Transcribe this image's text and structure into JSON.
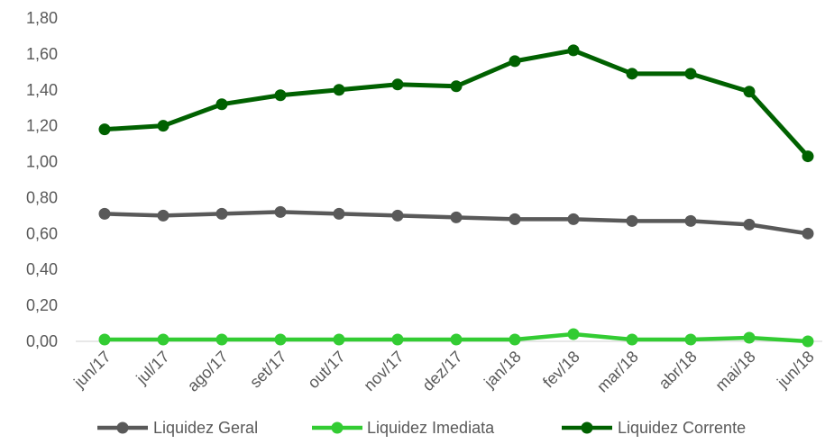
{
  "chart_data": {
    "type": "line",
    "title": "",
    "xlabel": "",
    "ylabel": "",
    "categories": [
      "jun/17",
      "jul/17",
      "ago/17",
      "set/17",
      "out/17",
      "nov/17",
      "dez/17",
      "jan/18",
      "fev/18",
      "mar/18",
      "abr/18",
      "mai/18",
      "jun/18"
    ],
    "ylim": [
      0,
      1.8
    ],
    "yticks": [
      "0,00",
      "0,20",
      "0,40",
      "0,60",
      "0,80",
      "1,00",
      "1,20",
      "1,40",
      "1,60",
      "1,80"
    ],
    "grid": false,
    "legend_position": "bottom",
    "series": [
      {
        "name": "Liquidez Geral",
        "color": "#595959",
        "values": [
          0.71,
          0.7,
          0.71,
          0.72,
          0.71,
          0.7,
          0.69,
          0.68,
          0.68,
          0.67,
          0.67,
          0.65,
          0.6
        ]
      },
      {
        "name": "Liquidez  Imediata",
        "color": "#33cc33",
        "values": [
          0.01,
          0.01,
          0.01,
          0.01,
          0.01,
          0.01,
          0.01,
          0.01,
          0.04,
          0.01,
          0.01,
          0.02,
          0.0
        ]
      },
      {
        "name": "Liquidez Corrente",
        "color": "#006100",
        "values": [
          1.18,
          1.2,
          1.32,
          1.37,
          1.4,
          1.43,
          1.42,
          1.56,
          1.62,
          1.49,
          1.49,
          1.39,
          1.03
        ]
      }
    ]
  }
}
